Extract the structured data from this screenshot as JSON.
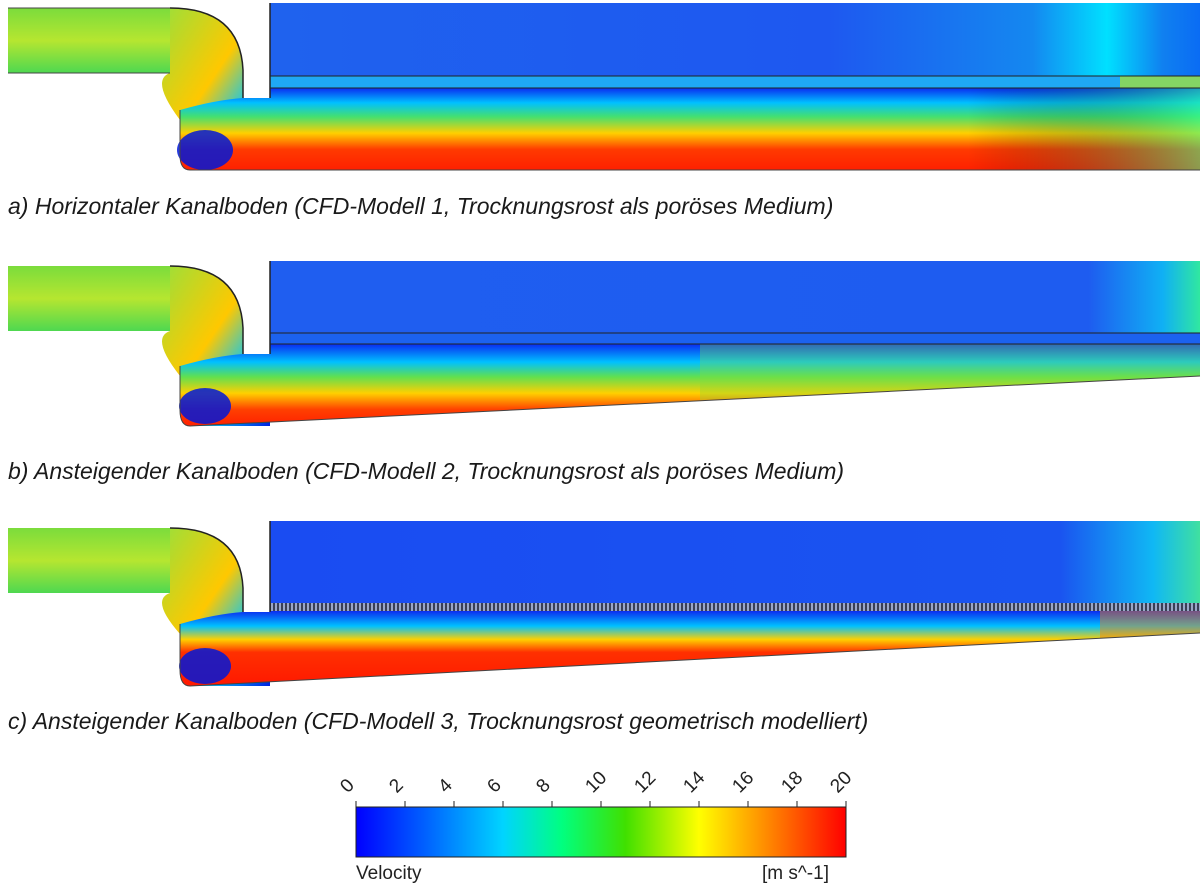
{
  "captions": {
    "a": "a) Horizontaler Kanalboden (CFD-Modell 1, Trocknungsrost als poröses Medium)",
    "b": "b) Ansteigender Kanalboden (CFD-Modell 2, Trocknungsrost als poröses Medium)",
    "c": "c) Ansteigender Kanalboden (CFD-Modell 3, Trocknungsrost geometrisch modelliert)"
  },
  "legend": {
    "title": "Velocity",
    "unit": "[m s^-1]",
    "min": 0,
    "max": 20,
    "ticks": [
      "0",
      "2",
      "4",
      "6",
      "8",
      "10",
      "12",
      "14",
      "16",
      "18",
      "20"
    ],
    "colors": {
      "c0": "#0000ff",
      "c1": "#0060ff",
      "c2": "#00d4ff",
      "c3": "#00ff80",
      "c4": "#40e000",
      "c5": "#ffff00",
      "c6": "#ff8000",
      "c7": "#ff0000"
    }
  }
}
